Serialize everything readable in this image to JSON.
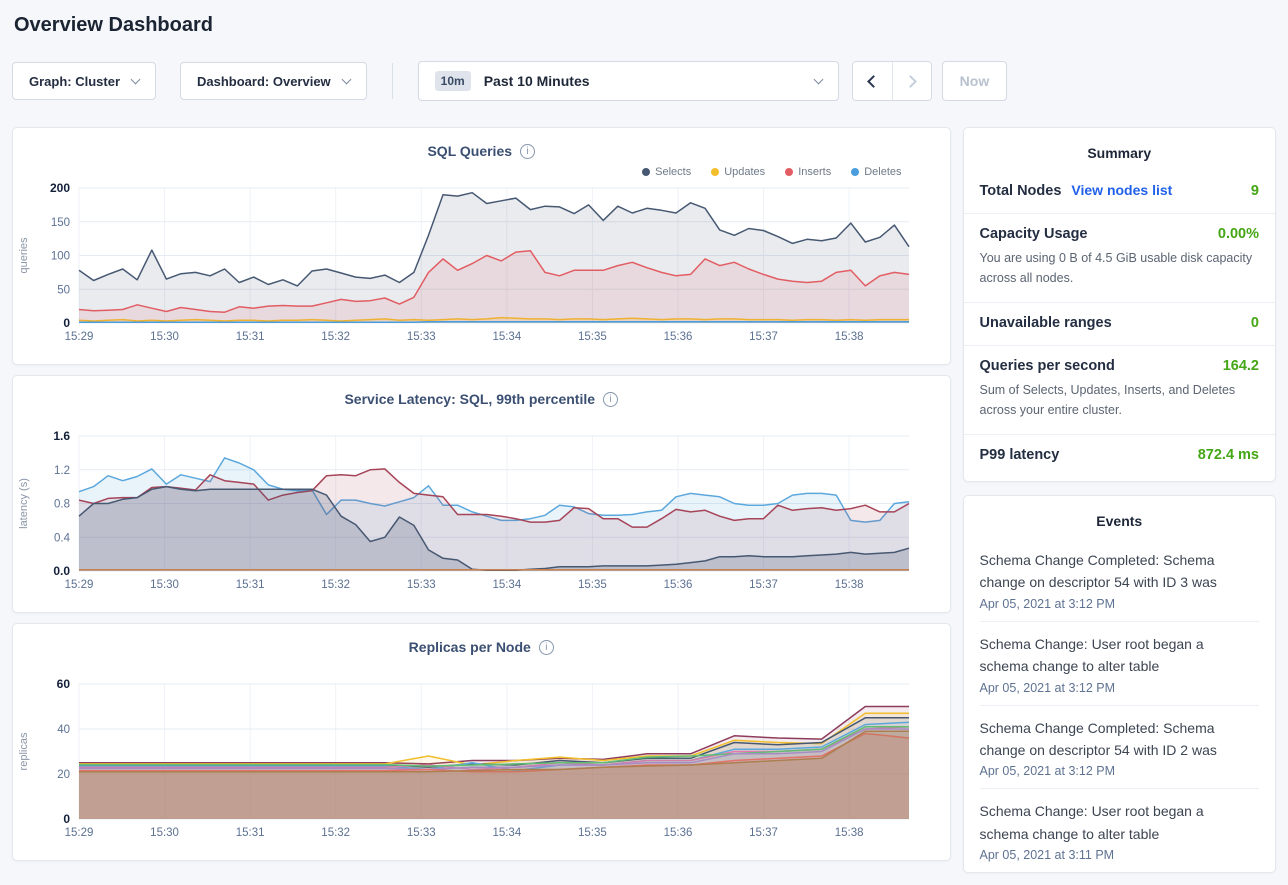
{
  "page": {
    "title": "Overview Dashboard"
  },
  "toolbar": {
    "graph_dropdown_label": "Graph: Cluster",
    "dashboard_dropdown_label": "Dashboard: Overview",
    "time_range_badge": "10m",
    "time_range_label": "Past 10 Minutes",
    "now_button_label": "Now",
    "prev_button_icon": "chevron-left",
    "next_button_icon": "chevron-right",
    "next_button_disabled": true,
    "now_button_disabled": true
  },
  "summary": {
    "heading": "Summary",
    "value_color": "#45a616",
    "link_color": "#2161ea",
    "rows": [
      {
        "label": "Total Nodes",
        "link": "View nodes list",
        "value": "9"
      },
      {
        "label": "Capacity Usage",
        "value": "0.00%",
        "desc": "You are using 0 B of 4.5 GiB usable disk capacity across all nodes."
      },
      {
        "label": "Unavailable ranges",
        "value": "0"
      },
      {
        "label": "Queries per second",
        "value": "164.2",
        "desc": "Sum of Selects, Updates, Inserts, and Deletes across your entire cluster."
      },
      {
        "label": "P99 latency",
        "value": "872.4 ms"
      }
    ]
  },
  "events": {
    "heading": "Events",
    "items": [
      {
        "text": "Schema Change Completed: Schema change on descriptor 54 with ID 3 was",
        "time": "Apr 05, 2021 at 3:12 PM"
      },
      {
        "text": "Schema Change: User root began a schema change to alter table",
        "time": "Apr 05, 2021 at 3:12 PM"
      },
      {
        "text": "Schema Change Completed: Schema change on descriptor 54 with ID 2 was",
        "time": "Apr 05, 2021 at 3:12 PM"
      },
      {
        "text": "Schema Change: User root began a schema change to alter table",
        "time": "Apr 05, 2021 at 3:11 PM"
      }
    ]
  },
  "chart_data": [
    {
      "type": "area",
      "title": "SQL Queries",
      "ylabel": "queries",
      "ylim": [
        0,
        200
      ],
      "yticks": [
        0,
        50,
        100,
        150,
        200
      ],
      "ytick_labels": [
        "0",
        "50",
        "100",
        "150",
        "200"
      ],
      "x_tick_labels": [
        "15:29",
        "15:30",
        "15:31",
        "15:32",
        "15:33",
        "15:34",
        "15:35",
        "15:36",
        "15:37",
        "15:38"
      ],
      "x_span_minutes": 9.7,
      "legend_position": "top-right",
      "grid": true,
      "series": [
        {
          "name": "Selects",
          "color": "#475872",
          "fill_opacity": 0.12,
          "values": [
            78,
            63,
            72,
            80,
            64,
            108,
            65,
            73,
            75,
            70,
            80,
            60,
            68,
            57,
            64,
            55,
            77,
            80,
            74,
            68,
            66,
            71,
            60,
            75,
            130,
            190,
            188,
            193,
            177,
            181,
            185,
            168,
            173,
            172,
            162,
            175,
            152,
            173,
            163,
            170,
            167,
            163,
            178,
            170,
            138,
            130,
            140,
            137,
            128,
            118,
            124,
            122,
            126,
            148,
            120,
            127,
            145,
            113
          ]
        },
        {
          "name": "Updates",
          "color": "#f2be2c",
          "fill_opacity": 0.18,
          "values": [
            4,
            3,
            4,
            5,
            3,
            4,
            3,
            4,
            5,
            4,
            3,
            4,
            4,
            3,
            4,
            4,
            5,
            4,
            3,
            4,
            5,
            6,
            4,
            5,
            4,
            5,
            6,
            5,
            6,
            8,
            7,
            6,
            6,
            5,
            6,
            6,
            5,
            6,
            7,
            6,
            5,
            6,
            6,
            5,
            6,
            6,
            5,
            5,
            5,
            4,
            5,
            5,
            4,
            5,
            4,
            5,
            5,
            5
          ]
        },
        {
          "name": "Inserts",
          "color": "#e25d63",
          "fill_opacity": 0.12,
          "values": [
            20,
            18,
            19,
            20,
            27,
            22,
            17,
            23,
            20,
            17,
            16,
            24,
            22,
            25,
            26,
            25,
            25,
            30,
            35,
            32,
            33,
            37,
            28,
            38,
            75,
            95,
            78,
            88,
            100,
            92,
            105,
            107,
            75,
            70,
            78,
            78,
            78,
            85,
            90,
            82,
            75,
            70,
            72,
            95,
            85,
            90,
            80,
            72,
            65,
            62,
            60,
            62,
            75,
            78,
            55,
            70,
            75,
            72
          ]
        },
        {
          "name": "Deletes",
          "color": "#4a9edd",
          "fill_opacity": 0.18,
          "values": [
            1,
            1,
            1,
            1,
            1,
            1,
            1,
            1,
            1,
            1,
            1,
            1,
            1,
            1,
            1,
            1,
            1,
            1,
            1,
            1,
            1,
            1,
            1,
            1,
            2,
            2,
            2,
            2,
            2,
            2,
            2,
            2,
            2,
            2,
            2,
            2,
            2,
            2,
            2,
            2,
            2,
            2,
            2,
            2,
            2,
            2,
            2,
            2,
            2,
            2,
            2,
            2,
            2,
            2,
            2,
            2,
            2,
            2
          ]
        }
      ]
    },
    {
      "type": "area",
      "title": "Service Latency: SQL, 99th percentile",
      "ylabel": "latency (s)",
      "ylim": [
        0,
        1.6
      ],
      "yticks": [
        0,
        0.4,
        0.8,
        1.2,
        1.6
      ],
      "ytick_labels": [
        "0.0",
        "0.4",
        "0.8",
        "1.2",
        "1.6"
      ],
      "x_tick_labels": [
        "15:29",
        "15:30",
        "15:31",
        "15:32",
        "15:33",
        "15:34",
        "15:35",
        "15:36",
        "15:37",
        "15:38"
      ],
      "x_span_minutes": 9.7,
      "grid": true,
      "series": [
        {
          "color": "#5ca8dd",
          "fill_opacity": 0.14,
          "values": [
            0.94,
            1.0,
            1.13,
            1.07,
            1.12,
            1.21,
            1.03,
            1.14,
            1.1,
            1.06,
            1.34,
            1.28,
            1.2,
            1.02,
            0.97,
            0.95,
            0.96,
            0.67,
            0.84,
            0.84,
            0.8,
            0.77,
            0.82,
            0.87,
            1.01,
            0.78,
            0.78,
            0.7,
            0.65,
            0.6,
            0.6,
            0.62,
            0.66,
            0.78,
            0.76,
            0.68,
            0.66,
            0.66,
            0.67,
            0.7,
            0.72,
            0.88,
            0.92,
            0.9,
            0.88,
            0.8,
            0.78,
            0.78,
            0.8,
            0.9,
            0.92,
            0.92,
            0.9,
            0.6,
            0.58,
            0.6,
            0.8,
            0.82
          ]
        },
        {
          "color": "#a64458",
          "fill_opacity": 0.12,
          "values": [
            0.84,
            0.8,
            0.86,
            0.87,
            0.87,
            0.99,
            1.0,
            0.98,
            0.96,
            1.14,
            1.07,
            1.05,
            1.03,
            0.84,
            0.9,
            0.93,
            0.95,
            1.13,
            1.14,
            1.13,
            1.2,
            1.21,
            1.05,
            0.92,
            0.9,
            0.88,
            0.67,
            0.67,
            0.67,
            0.65,
            0.62,
            0.58,
            0.58,
            0.6,
            0.75,
            0.74,
            0.62,
            0.62,
            0.52,
            0.52,
            0.62,
            0.73,
            0.7,
            0.72,
            0.65,
            0.6,
            0.62,
            0.62,
            0.78,
            0.72,
            0.74,
            0.75,
            0.72,
            0.74,
            0.78,
            0.7,
            0.7,
            0.8
          ]
        },
        {
          "color": "#475872",
          "fill_opacity": 0.22,
          "values": [
            0.65,
            0.8,
            0.8,
            0.85,
            0.87,
            0.97,
            1.0,
            0.97,
            0.95,
            0.97,
            0.97,
            0.97,
            0.97,
            0.97,
            0.97,
            0.97,
            0.97,
            0.9,
            0.65,
            0.55,
            0.35,
            0.4,
            0.64,
            0.54,
            0.25,
            0.15,
            0.13,
            0.02,
            0.01,
            0.01,
            0.01,
            0.02,
            0.03,
            0.05,
            0.05,
            0.05,
            0.06,
            0.06,
            0.06,
            0.06,
            0.07,
            0.08,
            0.1,
            0.12,
            0.17,
            0.17,
            0.18,
            0.17,
            0.17,
            0.17,
            0.18,
            0.19,
            0.2,
            0.22,
            0.2,
            0.21,
            0.22,
            0.27
          ]
        },
        {
          "color": "#c9824e",
          "fill_opacity": 0,
          "values": [
            0.015,
            0.015
          ]
        }
      ]
    },
    {
      "type": "area",
      "title": "Replicas per Node",
      "ylabel": "replicas",
      "ylim": [
        0,
        60
      ],
      "yticks": [
        0,
        20,
        40,
        60
      ],
      "ytick_labels": [
        "0",
        "20",
        "40",
        "60"
      ],
      "x_tick_labels": [
        "15:29",
        "15:30",
        "15:31",
        "15:32",
        "15:33",
        "15:34",
        "15:35",
        "15:36",
        "15:37",
        "15:38"
      ],
      "x_span_minutes": 9.7,
      "grid": true,
      "series": [
        {
          "color": "#8e3c5c",
          "fill_opacity": 0.1,
          "values": [
            25,
            25,
            25,
            25,
            25,
            25,
            25,
            25,
            24.5,
            26,
            26,
            27,
            26.5,
            29,
            29,
            37,
            36,
            35.5,
            50,
            50
          ]
        },
        {
          "color": "#f2be2c",
          "fill_opacity": 0.1,
          "values": [
            24.5,
            24.5,
            24.5,
            24.5,
            24.5,
            24.5,
            24.5,
            24.5,
            28,
            24,
            26,
            27.5,
            26,
            28,
            28,
            35,
            34,
            33.5,
            47,
            47
          ]
        },
        {
          "color": "#475872",
          "fill_opacity": 0.1,
          "values": [
            24,
            24,
            24,
            24,
            24,
            24,
            24,
            24,
            23,
            24.5,
            24,
            26,
            25,
            27,
            27,
            34,
            33,
            34,
            45,
            45
          ]
        },
        {
          "color": "#5ca8dd",
          "fill_opacity": 0.1,
          "values": [
            23.5,
            23.5,
            23.5,
            23.5,
            23.5,
            23.5,
            23.5,
            23.5,
            22,
            25,
            21.5,
            24,
            24,
            26,
            26,
            31,
            31,
            32,
            42,
            43
          ]
        },
        {
          "color": "#e179b0",
          "fill_opacity": 0.1,
          "values": [
            23,
            23,
            23,
            23,
            23,
            23,
            23,
            23,
            24,
            22,
            23,
            25,
            24,
            26,
            26,
            30,
            30,
            31,
            40,
            41
          ]
        },
        {
          "color": "#62bd74",
          "fill_opacity": 0.1,
          "values": [
            24.2,
            24.2,
            24.2,
            24.2,
            24.2,
            24.2,
            24.2,
            24.2,
            23.5,
            24,
            24.5,
            25,
            25,
            27.5,
            28,
            29,
            30,
            31,
            41,
            41
          ]
        },
        {
          "color": "#a98bc4",
          "fill_opacity": 0.1,
          "values": [
            22.5,
            22.5,
            22.5,
            22.5,
            22.5,
            22.5,
            22.5,
            22.5,
            22,
            23,
            23,
            24,
            24,
            25,
            25,
            29,
            29,
            30,
            40,
            40
          ]
        },
        {
          "color": "#e2726b",
          "fill_opacity": 0.22,
          "values": [
            21.5,
            21.5,
            21.5,
            21.5,
            21.5,
            21.5,
            21.5,
            21.5,
            22,
            21,
            21,
            22,
            23,
            24,
            24,
            26,
            27,
            28,
            38,
            36
          ]
        },
        {
          "color": "#ad7f4f",
          "fill_opacity": 0.3,
          "values": [
            21,
            21,
            21,
            21,
            21,
            21,
            21,
            21,
            21,
            21.5,
            22,
            22,
            23,
            23.5,
            24,
            25,
            26,
            27,
            39,
            39
          ]
        }
      ]
    }
  ]
}
